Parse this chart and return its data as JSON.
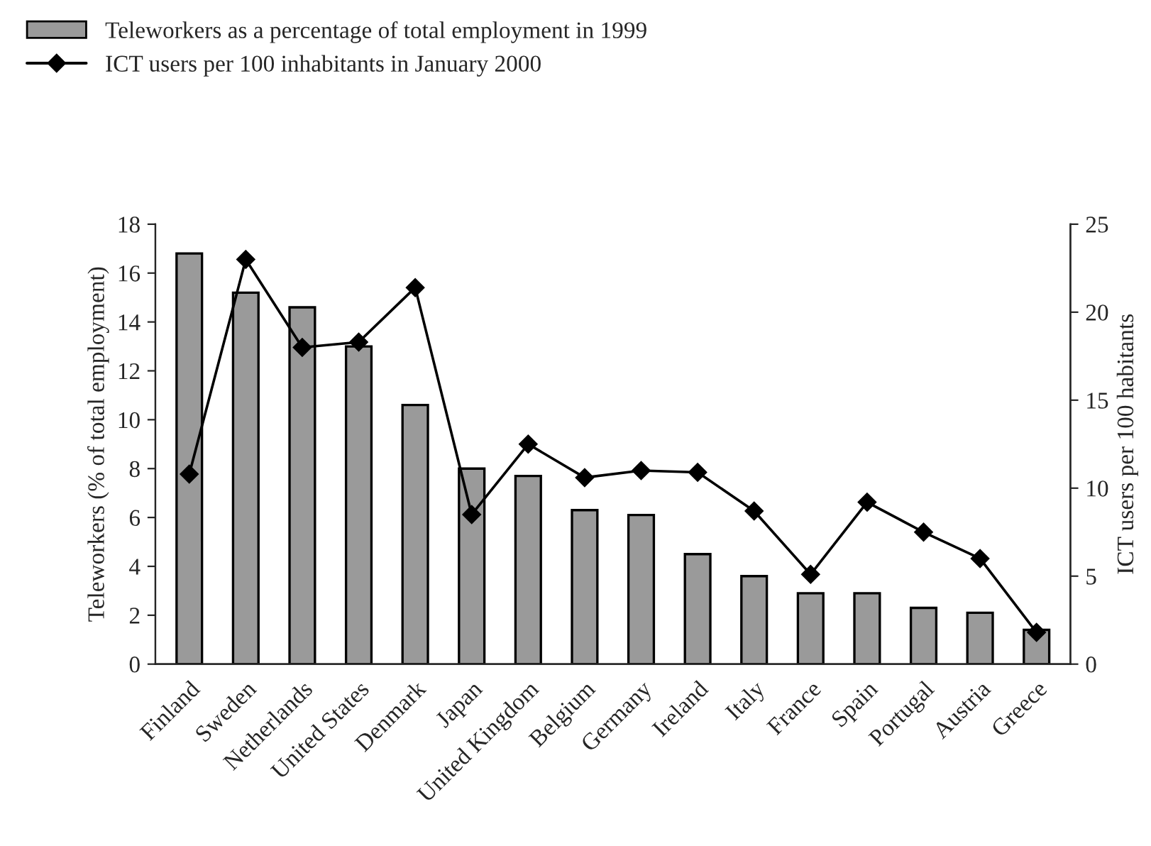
{
  "chart_data": {
    "type": "bar",
    "categories": [
      "Finland",
      "Sweden",
      "Netherlands",
      "United States",
      "Denmark",
      "Japan",
      "United Kingdom",
      "Belgium",
      "Germany",
      "Ireland",
      "Italy",
      "France",
      "Spain",
      "Portugal",
      "Austria",
      "Greece"
    ],
    "series": [
      {
        "name": "Teleworkers as a percentage of total employment in 1999",
        "color": "#9a9a9a",
        "values": [
          16.8,
          15.2,
          14.6,
          13.0,
          10.6,
          8.0,
          7.7,
          6.3,
          6.1,
          4.5,
          3.6,
          2.9,
          2.9,
          2.3,
          2.1,
          1.4
        ]
      },
      {
        "name": "ICT users per 100 inhabitants in January 2000",
        "type": "line",
        "axis": "y2",
        "color": "#000000",
        "marker": "diamond",
        "values": [
          10.8,
          23.0,
          18.0,
          18.3,
          21.4,
          8.5,
          12.5,
          10.6,
          11.0,
          10.9,
          8.7,
          5.1,
          9.2,
          7.5,
          6.0,
          1.8
        ]
      }
    ],
    "ylabel": "Teleworkers (% of total employment)",
    "y2label": "ICT users per 100 habitants",
    "ylim": [
      0,
      18
    ],
    "yticks": [
      0,
      2,
      4,
      6,
      8,
      10,
      12,
      14,
      16,
      18
    ],
    "y2lim": [
      0,
      25
    ],
    "y2ticks": [
      0,
      5,
      10,
      15,
      20,
      25
    ],
    "grid": false,
    "legend": "top left"
  }
}
